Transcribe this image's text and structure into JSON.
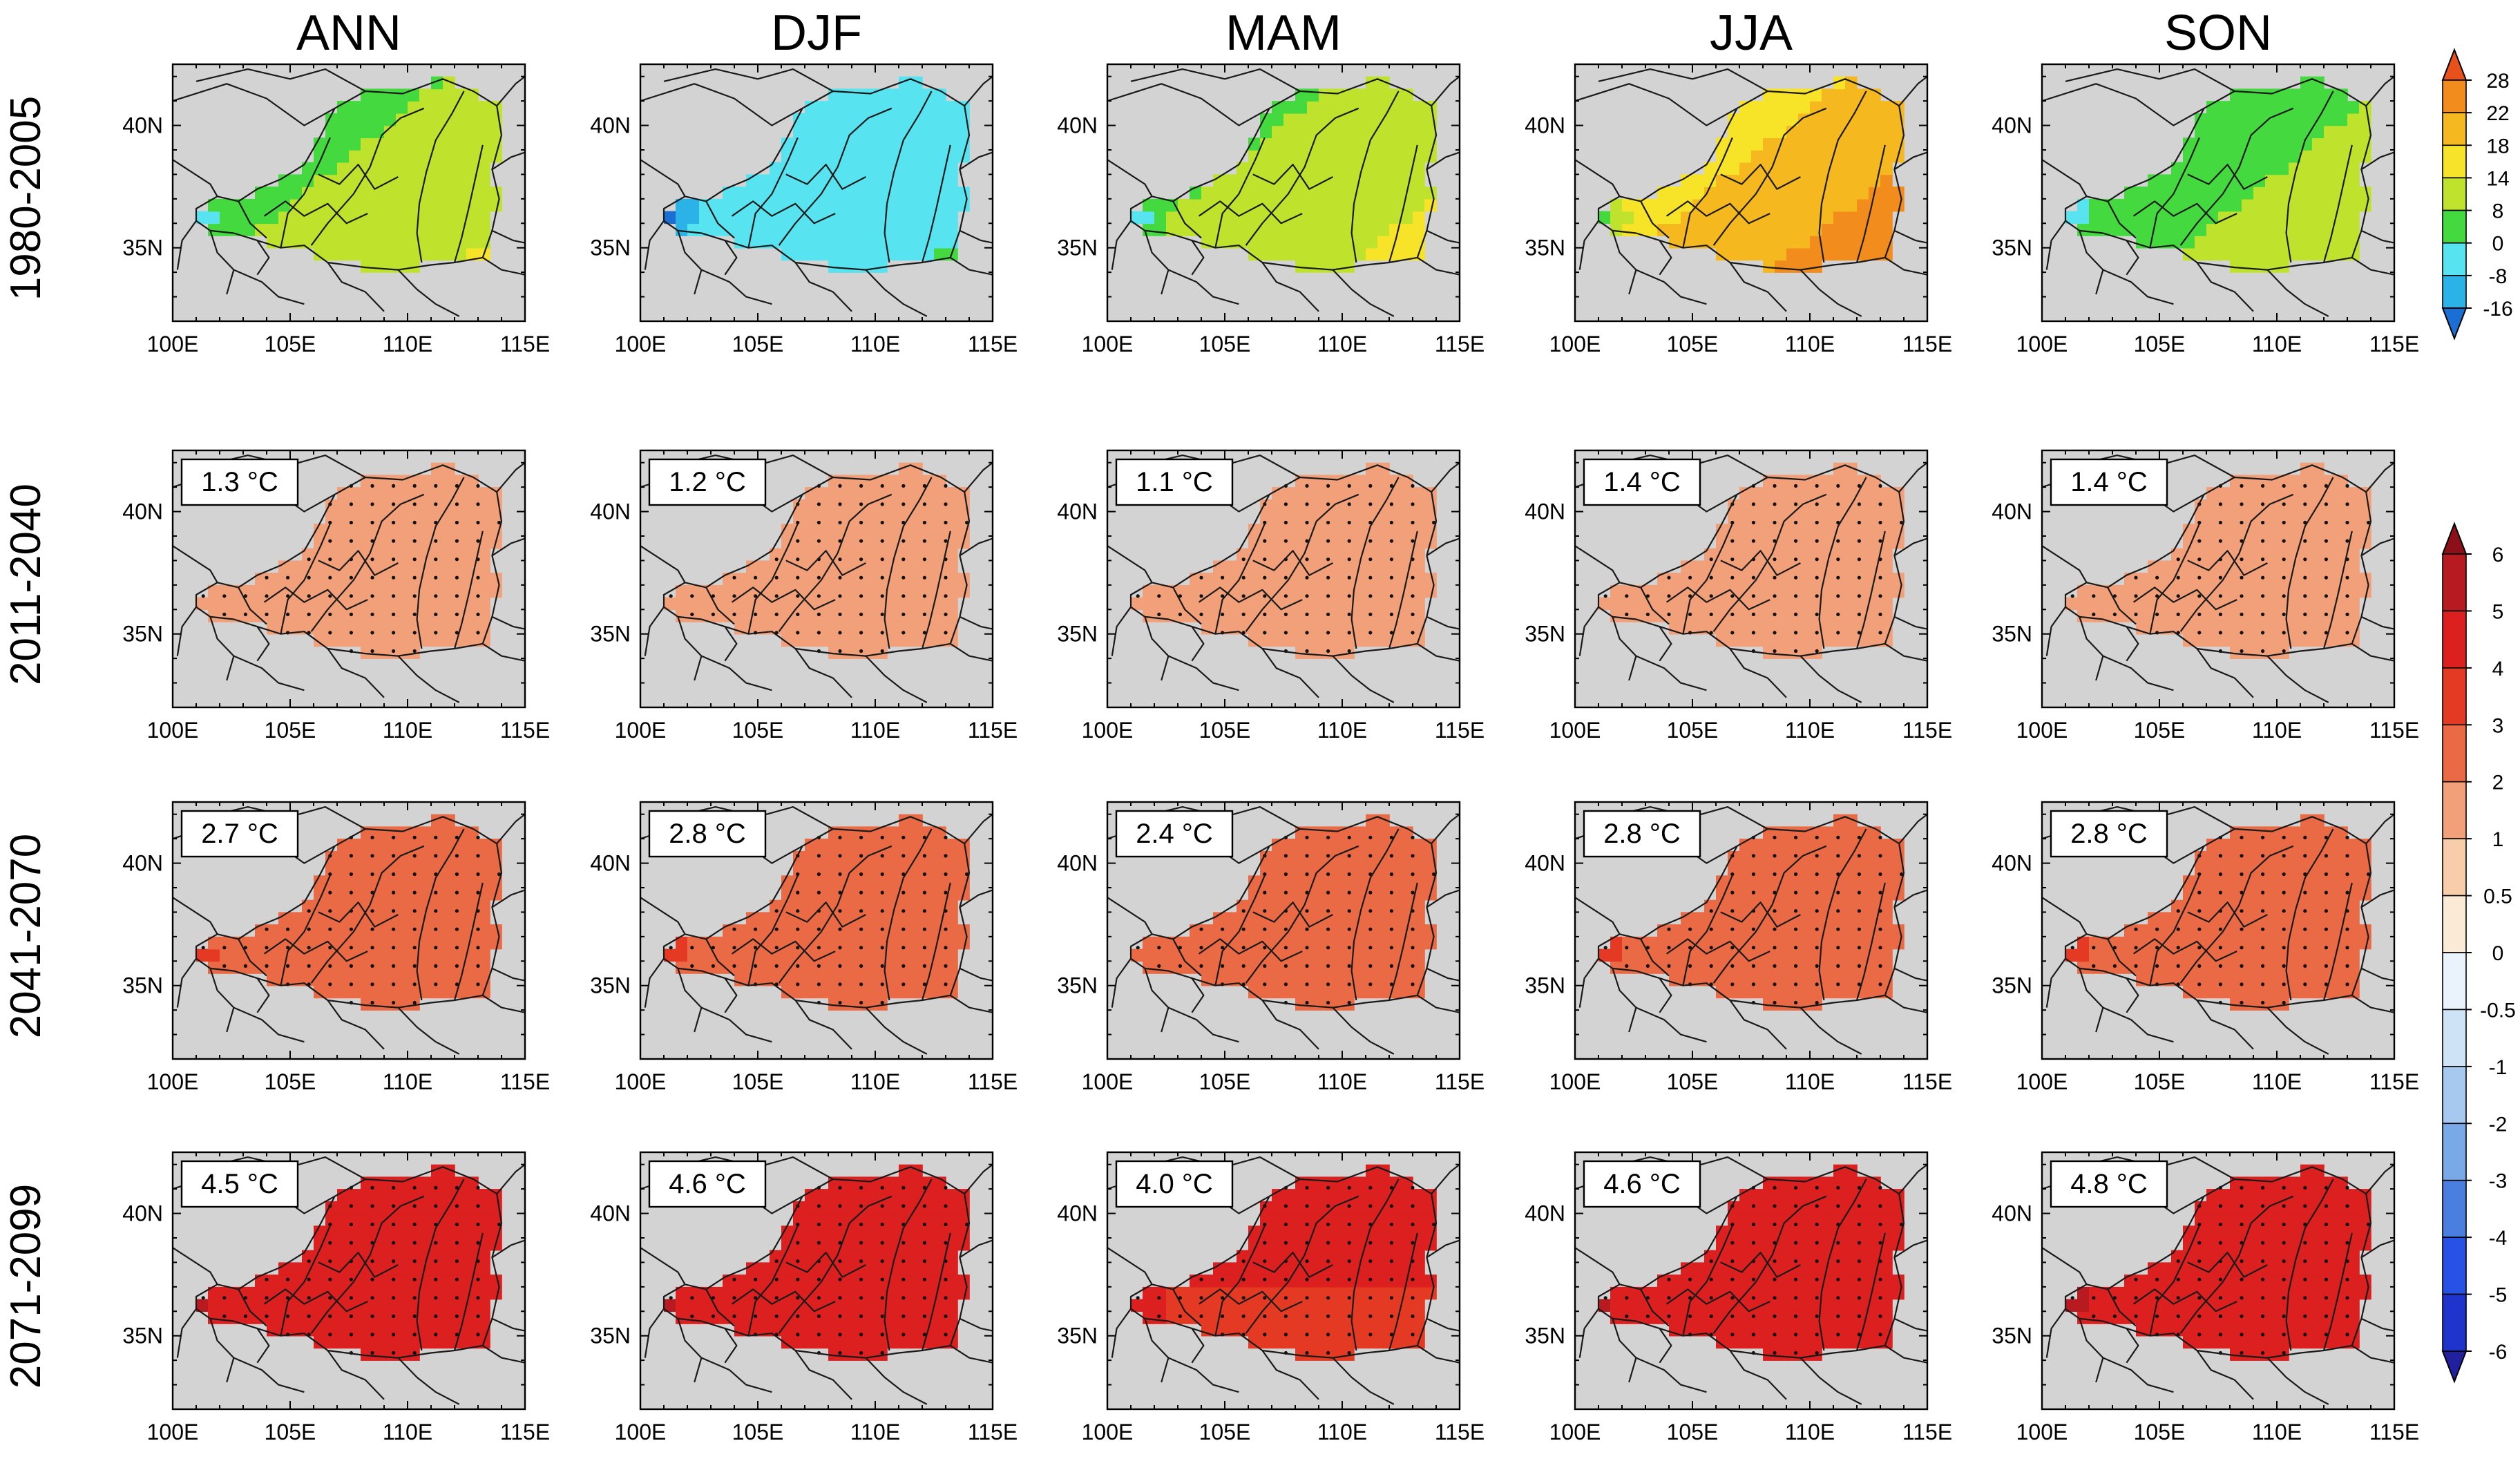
{
  "chart_data": {
    "type": "heatmap",
    "title": "",
    "columns": [
      "ANN",
      "DJF",
      "MAM",
      "JJA",
      "SON"
    ],
    "rows": [
      "1980-2005",
      "2011-2040",
      "2041-2070",
      "2071-2099"
    ],
    "x_ticks": [
      "100E",
      "105E",
      "110E",
      "115E"
    ],
    "x_tick_values": [
      100,
      105,
      110,
      115
    ],
    "y_ticks": [
      "40N",
      "35N"
    ],
    "y_tick_values": [
      40,
      35
    ],
    "xlim": [
      100,
      115
    ],
    "ylim": [
      32,
      42.5
    ],
    "panel_annotations": [
      [
        null,
        null,
        null,
        null,
        null
      ],
      [
        "1.3 °C",
        "1.2 °C",
        "1.1 °C",
        "1.4 °C",
        "1.4 °C"
      ],
      [
        "2.7 °C",
        "2.8 °C",
        "2.4 °C",
        "2.8 °C",
        "2.8 °C"
      ],
      [
        "4.5 °C",
        "4.6 °C",
        "4.0 °C",
        "4.6 °C",
        "4.8 °C"
      ]
    ],
    "regional_mean_values": [
      [
        9,
        -5,
        10,
        19,
        7
      ],
      [
        1.3,
        1.2,
        1.1,
        1.4,
        1.4
      ],
      [
        2.7,
        2.8,
        2.4,
        2.8,
        2.8
      ],
      [
        4.5,
        4.6,
        4.0,
        4.6,
        4.8
      ]
    ],
    "colorbar_climatology": {
      "levels": [
        "28",
        "22",
        "18",
        "14",
        "8",
        "0",
        "-8",
        "-16"
      ],
      "colors": [
        "#e8501c",
        "#f28c1c",
        "#f5b81e",
        "#f7e328",
        "#bfe32c",
        "#44d93e",
        "#57e3f0",
        "#2bb3e8",
        "#1a6ed4"
      ]
    },
    "colorbar_change": {
      "levels": [
        "6",
        "5",
        "4",
        "3",
        "2",
        "1",
        "0.5",
        "0",
        "-0.5",
        "-1",
        "-2",
        "-3",
        "-4",
        "-5",
        "-6"
      ],
      "colors": [
        "#8c1018",
        "#b81a22",
        "#dc1f1f",
        "#e43a24",
        "#ea6a45",
        "#f2a07a",
        "#f8cda9",
        "#fbead6",
        "#eaf3fb",
        "#cfe3f6",
        "#a7c8ef",
        "#7aa9e8",
        "#4a7fe0",
        "#2851e6",
        "#1f34cc",
        "#21209e"
      ]
    }
  }
}
